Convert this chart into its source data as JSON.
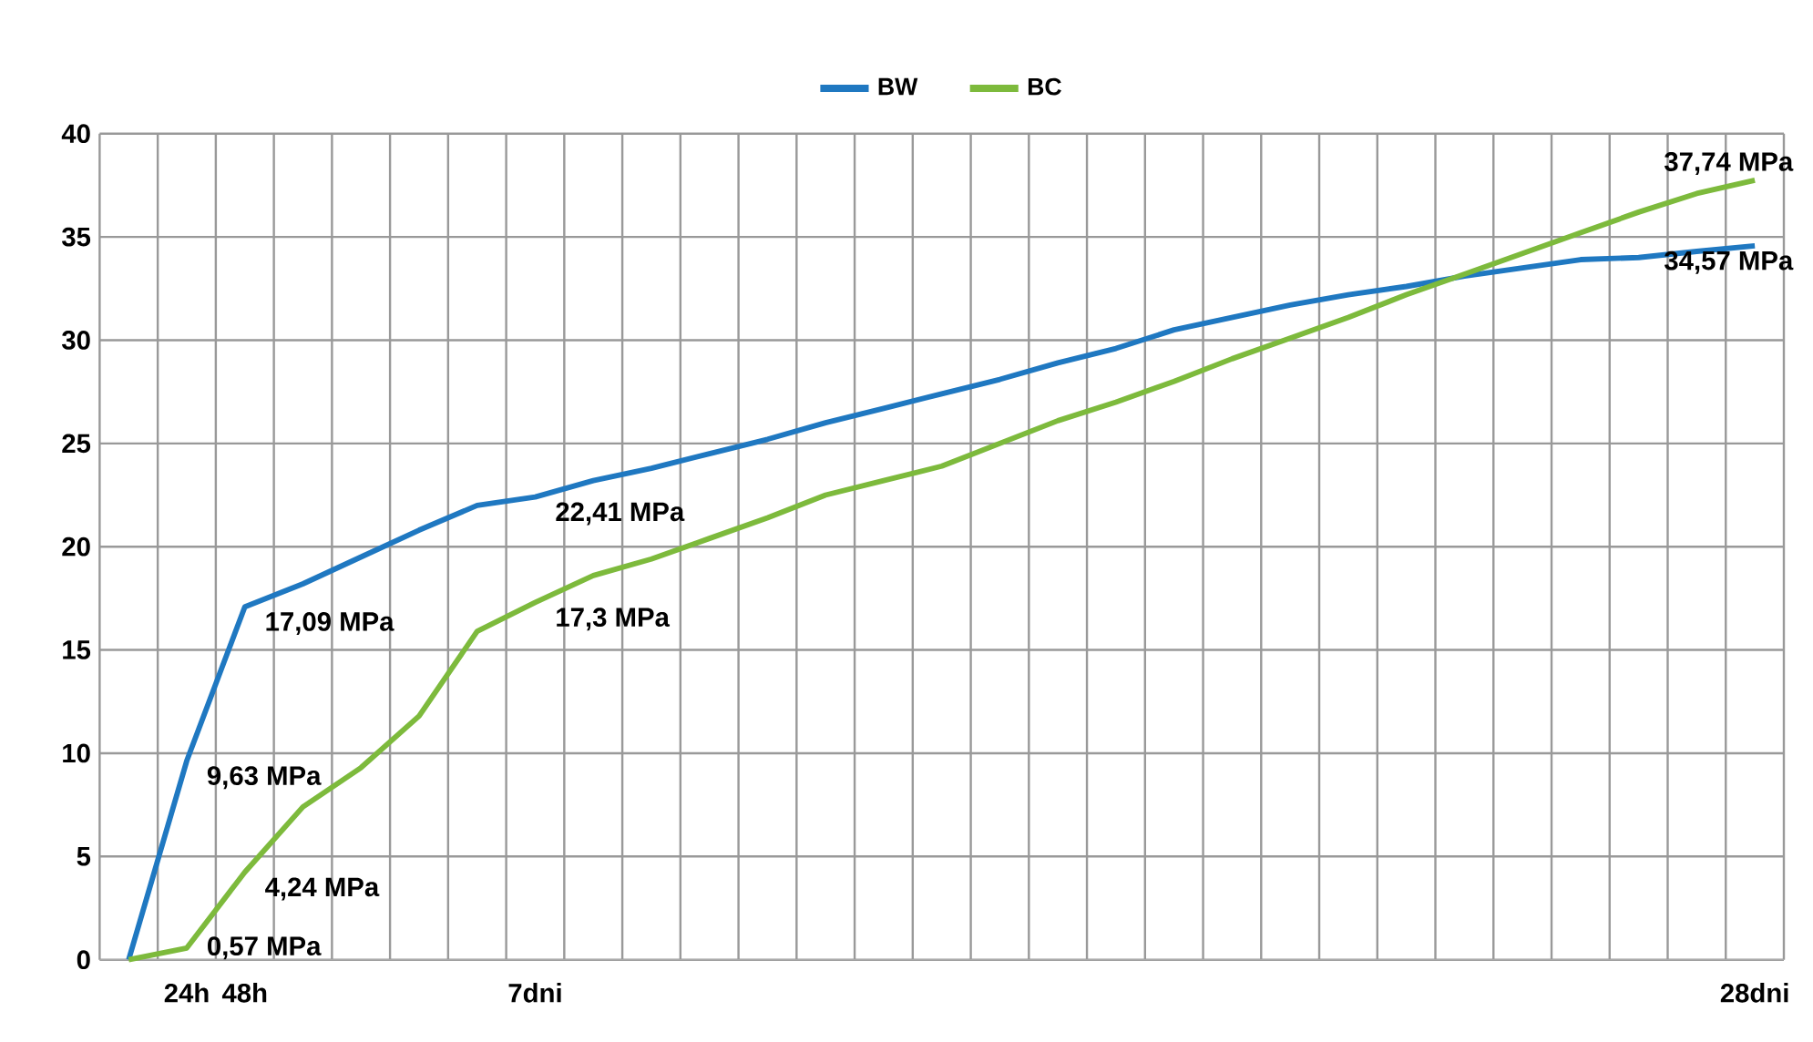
{
  "chart_data": {
    "type": "line",
    "categories": [
      null,
      "24h",
      "48h",
      null,
      null,
      null,
      null,
      "7dni",
      null,
      null,
      null,
      null,
      null,
      null,
      null,
      null,
      null,
      null,
      null,
      null,
      null,
      null,
      null,
      null,
      null,
      null,
      null,
      null,
      "28dni"
    ],
    "series": [
      {
        "name": "BW",
        "color": "#1f78c1",
        "values": [
          0,
          9.63,
          17.09,
          18.2,
          19.5,
          20.8,
          22.0,
          22.41,
          23.2,
          23.8,
          24.5,
          25.2,
          26.0,
          26.7,
          27.4,
          28.1,
          28.9,
          29.6,
          30.5,
          31.1,
          31.7,
          32.2,
          32.6,
          33.1,
          33.5,
          33.9,
          34.0,
          34.3,
          34.57
        ],
        "value_labels": [
          null,
          "9,63 MPa",
          "17,09 MPa",
          null,
          null,
          null,
          null,
          "22,41 MPa",
          null,
          null,
          null,
          null,
          null,
          null,
          null,
          null,
          null,
          null,
          null,
          null,
          null,
          null,
          null,
          null,
          null,
          null,
          null,
          null,
          "34,57 MPa"
        ]
      },
      {
        "name": "BC",
        "color": "#7dba3c",
        "values": [
          0,
          0.57,
          4.24,
          7.4,
          9.3,
          11.8,
          15.9,
          17.3,
          18.6,
          19.4,
          20.4,
          21.4,
          22.5,
          23.2,
          23.9,
          25.0,
          26.1,
          27.0,
          28.0,
          29.1,
          30.1,
          31.1,
          32.2,
          33.2,
          34.2,
          35.2,
          36.2,
          37.1,
          37.74
        ],
        "value_labels": [
          null,
          "0,57 MPa",
          "4,24 MPa",
          null,
          null,
          null,
          null,
          "17,3 MPa",
          null,
          null,
          null,
          null,
          null,
          null,
          null,
          null,
          null,
          null,
          null,
          null,
          null,
          null,
          null,
          null,
          null,
          null,
          null,
          null,
          "37,74 MPa"
        ]
      }
    ],
    "ylim": [
      0,
      40
    ],
    "yticks": [
      0,
      5,
      10,
      15,
      20,
      25,
      30,
      35,
      40
    ],
    "grid": true,
    "legend": "top",
    "marker": "none"
  }
}
